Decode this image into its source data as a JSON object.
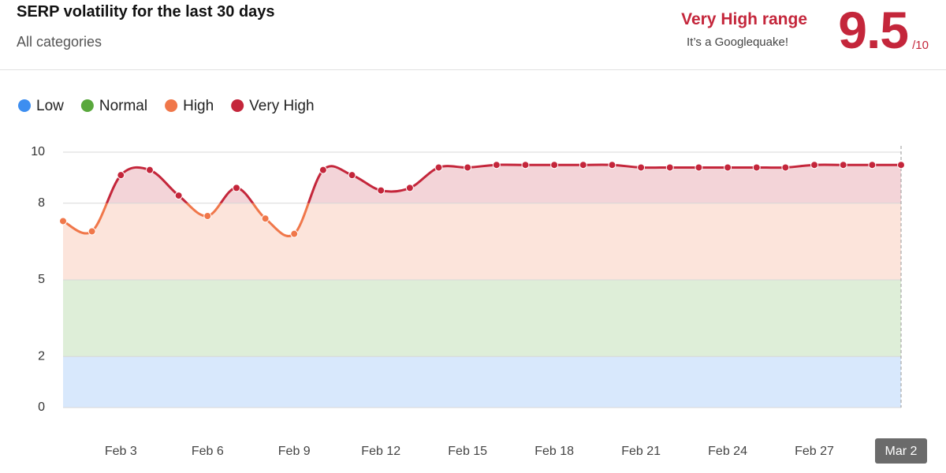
{
  "header": {
    "title": "SERP volatility for the last 30 days",
    "subtitle": "All categories",
    "range_label": "Very High range",
    "range_note": "It’s a Googlequake!",
    "score": 9.5,
    "score_max": "/10"
  },
  "chart_data": {
    "type": "line",
    "categories": [
      null,
      null,
      "Feb 3",
      null,
      null,
      "Feb 6",
      null,
      null,
      "Feb 9",
      null,
      null,
      "Feb 12",
      null,
      null,
      "Feb 15",
      null,
      null,
      "Feb 18",
      null,
      null,
      "Feb 21",
      null,
      null,
      "Feb 24",
      null,
      null,
      "Feb 27",
      null,
      null,
      "Mar 2"
    ],
    "values": [
      7.3,
      6.9,
      9.1,
      9.3,
      8.3,
      7.5,
      8.6,
      7.4,
      6.8,
      9.3,
      9.1,
      8.5,
      8.6,
      9.4,
      9.4,
      9.5,
      9.5,
      9.5,
      9.5,
      9.5,
      9.4,
      9.4,
      9.4,
      9.4,
      9.4,
      9.4,
      9.5,
      9.5,
      9.5,
      9.5
    ],
    "ranges": [
      {
        "name": "Low",
        "color": "#3d8ef0",
        "from": 0,
        "to": 2
      },
      {
        "name": "Normal",
        "color": "#59a83c",
        "from": 2,
        "to": 5
      },
      {
        "name": "High",
        "color": "#f0774a",
        "from": 5,
        "to": 8
      },
      {
        "name": "Very High",
        "color": "#c4263b",
        "from": 8,
        "to": 10
      }
    ],
    "ylim": [
      0,
      10
    ],
    "yticks": [
      0,
      2,
      5,
      8,
      10
    ],
    "grid": true
  }
}
